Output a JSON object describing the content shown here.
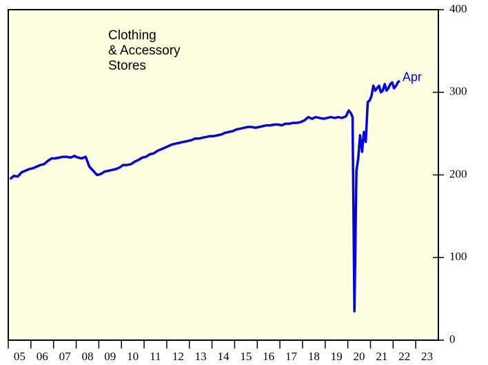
{
  "chart_data": {
    "type": "line",
    "title_lines": [
      "Clothing",
      "& Accessory",
      "Stores"
    ],
    "annotation": "Apr",
    "series": [
      {
        "name": "Clothing & Accessory Stores",
        "color": "#0000ee",
        "x": [
          2005.08,
          2005.25,
          2005.42,
          2005.58,
          2005.75,
          2005.92,
          2006.08,
          2006.25,
          2006.42,
          2006.58,
          2006.75,
          2006.92,
          2007.08,
          2007.25,
          2007.42,
          2007.58,
          2007.75,
          2007.92,
          2008.08,
          2008.25,
          2008.42,
          2008.58,
          2008.75,
          2008.92,
          2009.08,
          2009.25,
          2009.42,
          2009.58,
          2009.75,
          2009.92,
          2010.08,
          2010.25,
          2010.42,
          2010.58,
          2010.75,
          2010.92,
          2011.08,
          2011.25,
          2011.42,
          2011.58,
          2011.75,
          2011.92,
          2012.08,
          2012.25,
          2012.42,
          2012.58,
          2012.75,
          2012.92,
          2013.08,
          2013.25,
          2013.42,
          2013.58,
          2013.75,
          2013.92,
          2014.08,
          2014.25,
          2014.42,
          2014.58,
          2014.75,
          2014.92,
          2015.08,
          2015.25,
          2015.42,
          2015.58,
          2015.75,
          2015.92,
          2016.08,
          2016.25,
          2016.42,
          2016.58,
          2016.75,
          2016.92,
          2017.08,
          2017.25,
          2017.42,
          2017.58,
          2017.75,
          2017.92,
          2018.08,
          2018.25,
          2018.42,
          2018.58,
          2018.75,
          2018.92,
          2019.08,
          2019.25,
          2019.42,
          2019.58,
          2019.75,
          2019.92,
          2020.04,
          2020.13,
          2020.21,
          2020.29,
          2020.38,
          2020.46,
          2020.54,
          2020.63,
          2020.71,
          2020.79,
          2020.88,
          2020.96,
          2021.04,
          2021.13,
          2021.21,
          2021.29,
          2021.38,
          2021.46,
          2021.54,
          2021.63,
          2021.71,
          2021.79,
          2021.88,
          2021.96,
          2022.04,
          2022.13,
          2022.21,
          2022.29
        ],
        "values": [
          195,
          199,
          198,
          203,
          205,
          207,
          208,
          210,
          212,
          213,
          217,
          220,
          220,
          221,
          222,
          222,
          221,
          223,
          221,
          220,
          222,
          210,
          205,
          200,
          201,
          204,
          205,
          206,
          207,
          209,
          212,
          212,
          213,
          216,
          218,
          221,
          222,
          225,
          226,
          229,
          231,
          233,
          235,
          237,
          238,
          239,
          240,
          241,
          242,
          244,
          244,
          245,
          246,
          247,
          247,
          248,
          249,
          251,
          252,
          253,
          255,
          256,
          257,
          258,
          258,
          257,
          258,
          259,
          260,
          260,
          261,
          261,
          260,
          262,
          262,
          263,
          263,
          264,
          266,
          270,
          268,
          270,
          269,
          268,
          269,
          270,
          269,
          270,
          269,
          271,
          278,
          275,
          270,
          35,
          205,
          220,
          248,
          228,
          252,
          240,
          288,
          290,
          295,
          308,
          302,
          305,
          308,
          300,
          302,
          310,
          302,
          305,
          310,
          312,
          305,
          308,
          312,
          314
        ]
      }
    ],
    "xlim": [
      2005,
      2024
    ],
    "xticks": [
      {
        "value": 2005.5,
        "label": "05"
      },
      {
        "value": 2006.5,
        "label": "06"
      },
      {
        "value": 2007.5,
        "label": "07"
      },
      {
        "value": 2008.5,
        "label": "08"
      },
      {
        "value": 2009.5,
        "label": "09"
      },
      {
        "value": 2010.5,
        "label": "10"
      },
      {
        "value": 2011.5,
        "label": "11"
      },
      {
        "value": 2012.5,
        "label": "12"
      },
      {
        "value": 2013.5,
        "label": "13"
      },
      {
        "value": 2014.5,
        "label": "14"
      },
      {
        "value": 2015.5,
        "label": "15"
      },
      {
        "value": 2016.5,
        "label": "16"
      },
      {
        "value": 2017.5,
        "label": "17"
      },
      {
        "value": 2018.5,
        "label": "18"
      },
      {
        "value": 2019.5,
        "label": "19"
      },
      {
        "value": 2020.5,
        "label": "20"
      },
      {
        "value": 2021.5,
        "label": "21"
      },
      {
        "value": 2022.5,
        "label": "22"
      },
      {
        "value": 2023.5,
        "label": "23"
      }
    ],
    "ylim": [
      0,
      400
    ],
    "yticks": [
      0,
      100,
      200,
      300,
      400
    ],
    "yaxis_side": "right",
    "grid": false,
    "background": "#fdfde0"
  }
}
